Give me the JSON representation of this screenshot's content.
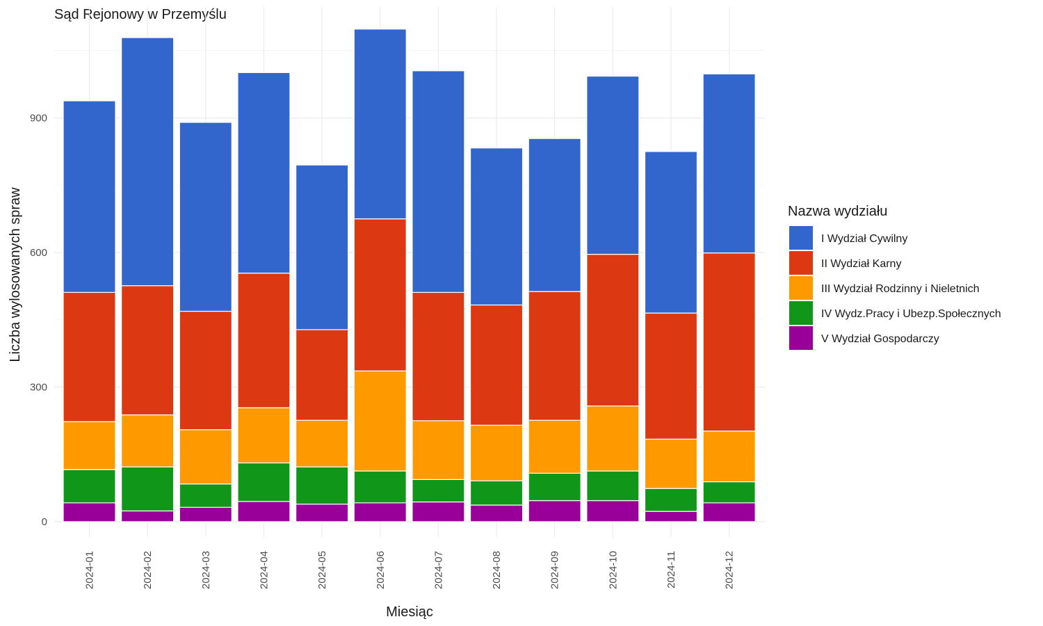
{
  "chart_data": {
    "type": "bar",
    "stacked": true,
    "title": "Sąd Rejonowy w Przemyślu",
    "xlabel": "Miesiąc",
    "ylabel": "Liczba wylosowanych spraw",
    "ylim": [
      0,
      1100
    ],
    "yticks": [
      0,
      300,
      600,
      900
    ],
    "grid": true,
    "legend": {
      "title": "Nazwa wydziału",
      "position": "right"
    },
    "categories": [
      "2024-01",
      "2024-02",
      "2024-03",
      "2024-04",
      "2024-05",
      "2024-06",
      "2024-07",
      "2024-08",
      "2024-09",
      "2024-10",
      "2024-11",
      "2024-12"
    ],
    "series": [
      {
        "name": "V Wydział Gospodarczy",
        "color": "#990099",
        "values": [
          42,
          24,
          32,
          45,
          39,
          42,
          44,
          37,
          47,
          47,
          23,
          42
        ]
      },
      {
        "name": "IV Wydz.Pracy i Ubezp.Społecznych",
        "color": "#109618",
        "values": [
          74,
          98,
          52,
          86,
          83,
          71,
          50,
          54,
          61,
          66,
          51,
          47
        ]
      },
      {
        "name": "III Wydział Rodzinny i Nieletnich",
        "color": "#FF9900",
        "values": [
          107,
          116,
          121,
          123,
          104,
          223,
          131,
          124,
          118,
          145,
          110,
          113
        ]
      },
      {
        "name": "II Wydział Karny",
        "color": "#DC3912",
        "values": [
          288,
          288,
          264,
          300,
          202,
          339,
          286,
          268,
          287,
          338,
          281,
          397
        ]
      },
      {
        "name": "I Wydział Cywilny",
        "color": "#3366CC",
        "values": [
          427,
          553,
          421,
          447,
          367,
          423,
          494,
          350,
          341,
          397,
          360,
          399
        ]
      }
    ]
  }
}
